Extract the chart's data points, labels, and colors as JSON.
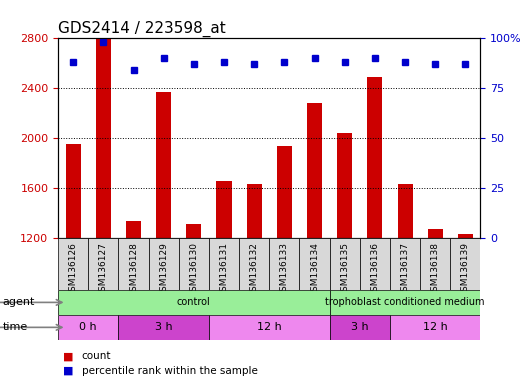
{
  "title": "GDS2414 / 223598_at",
  "samples": [
    "GSM136126",
    "GSM136127",
    "GSM136128",
    "GSM136129",
    "GSM136130",
    "GSM136131",
    "GSM136132",
    "GSM136133",
    "GSM136134",
    "GSM136135",
    "GSM136136",
    "GSM136137",
    "GSM136138",
    "GSM136139"
  ],
  "counts": [
    1950,
    2800,
    1340,
    2370,
    1310,
    1660,
    1630,
    1940,
    2280,
    2040,
    2490,
    1630,
    1270,
    1230
  ],
  "percentiles": [
    88,
    98,
    84,
    90,
    87,
    88,
    87,
    88,
    90,
    88,
    90,
    88,
    87,
    87
  ],
  "ylim_left": [
    1200,
    2800
  ],
  "ylim_right": [
    0,
    100
  ],
  "yticks_left": [
    1200,
    1600,
    2000,
    2400,
    2800
  ],
  "yticks_right": [
    0,
    25,
    50,
    75,
    100
  ],
  "bar_color": "#cc0000",
  "dot_color": "#0000cc",
  "agent_groups": [
    {
      "label": "control",
      "start": 0,
      "end": 9,
      "color": "#99ee99"
    },
    {
      "label": "trophoblast conditioned medium",
      "start": 9,
      "end": 14,
      "color": "#99ee99"
    }
  ],
  "time_groups": [
    {
      "label": "0 h",
      "start": 0,
      "end": 2,
      "color": "#ee88ee"
    },
    {
      "label": "3 h",
      "start": 2,
      "end": 5,
      "color": "#cc44cc"
    },
    {
      "label": "12 h",
      "start": 5,
      "end": 9,
      "color": "#ee88ee"
    },
    {
      "label": "3 h",
      "start": 9,
      "end": 11,
      "color": "#cc44cc"
    },
    {
      "label": "12 h",
      "start": 11,
      "end": 14,
      "color": "#ee88ee"
    }
  ],
  "agent_label": "agent",
  "time_label": "time",
  "legend_count_label": "count",
  "legend_pct_label": "percentile rank within the sample",
  "title_fontsize": 11,
  "tick_fontsize": 8,
  "label_fontsize": 6.5
}
